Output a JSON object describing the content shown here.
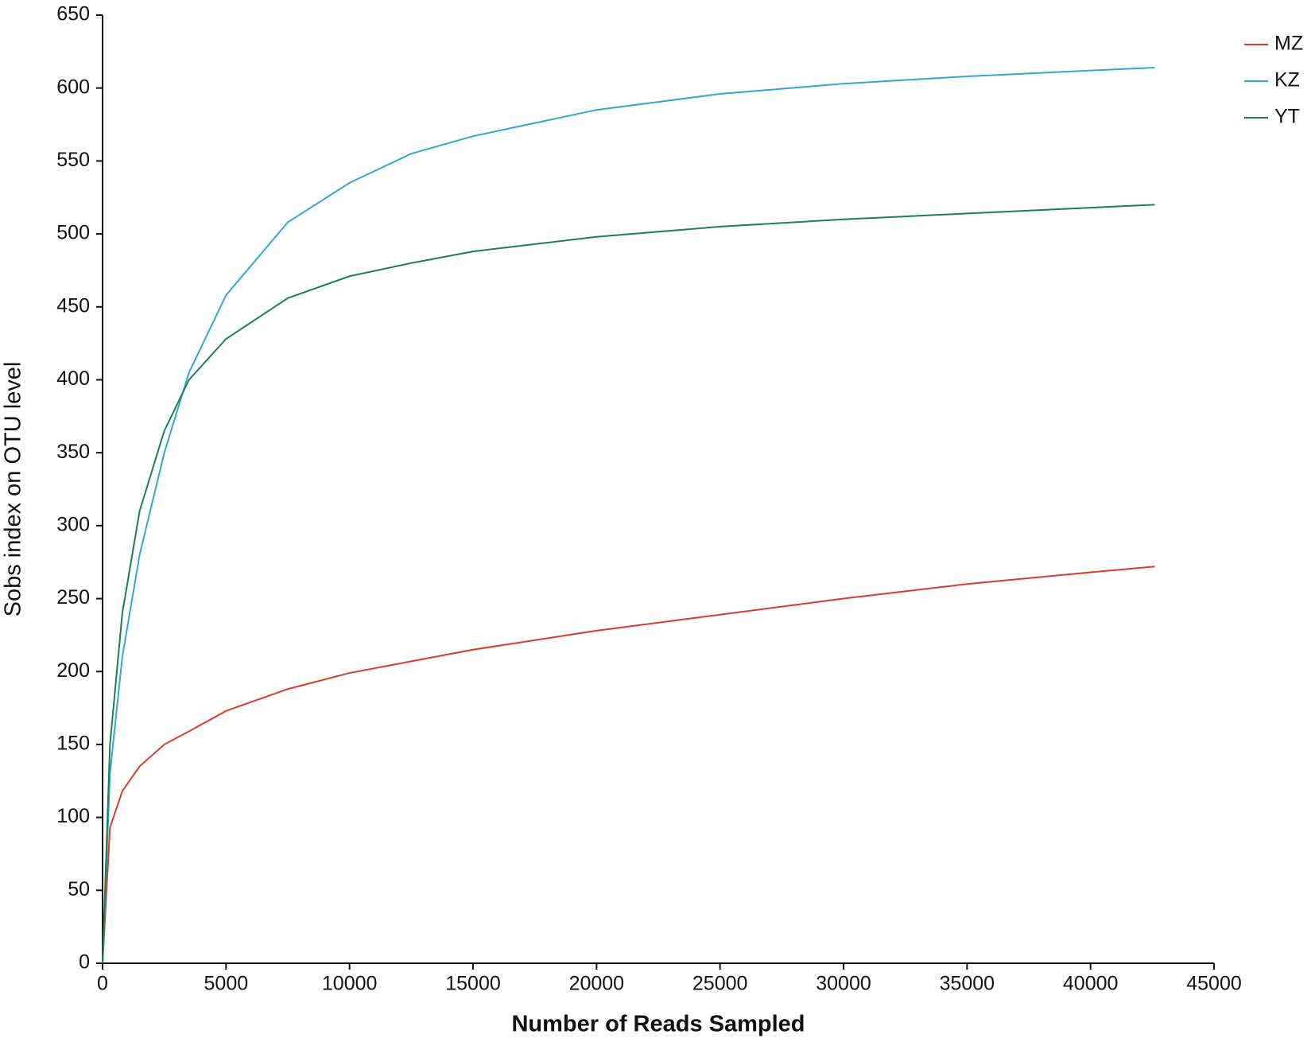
{
  "chart_data": {
    "type": "line",
    "xlabel": "Number of Reads Sampled",
    "ylabel": "Sobs index on OTU level",
    "x": [
      0,
      300,
      800,
      1500,
      2500,
      3500,
      5000,
      7500,
      10000,
      12500,
      15000,
      20000,
      25000,
      30000,
      35000,
      40000,
      42600
    ],
    "series": [
      {
        "name": "MZ",
        "color": "#d83a2c",
        "values": [
          0,
          93,
          118,
          135,
          150,
          159,
          173,
          188,
          199,
          207,
          215,
          228,
          239,
          250,
          260,
          268,
          272
        ]
      },
      {
        "name": "KZ",
        "color": "#2fa9cd",
        "values": [
          0,
          130,
          210,
          280,
          350,
          405,
          458,
          508,
          535,
          555,
          567,
          585,
          596,
          603,
          608,
          612,
          614
        ]
      },
      {
        "name": "YT",
        "color": "#1b7f52",
        "values": [
          0,
          150,
          240,
          310,
          365,
          400,
          428,
          456,
          471,
          480,
          488,
          498,
          505,
          510,
          514,
          518,
          520
        ]
      }
    ],
    "xlim": [
      0,
      45000
    ],
    "xticks": [
      0,
      5000,
      10000,
      15000,
      20000,
      25000,
      30000,
      35000,
      40000,
      45000
    ],
    "ylim": [
      0,
      650
    ],
    "yticks": [
      0,
      50,
      100,
      150,
      200,
      250,
      300,
      350,
      400,
      450,
      500,
      550,
      600,
      650
    ],
    "grid": false,
    "legend": "upper right"
  }
}
